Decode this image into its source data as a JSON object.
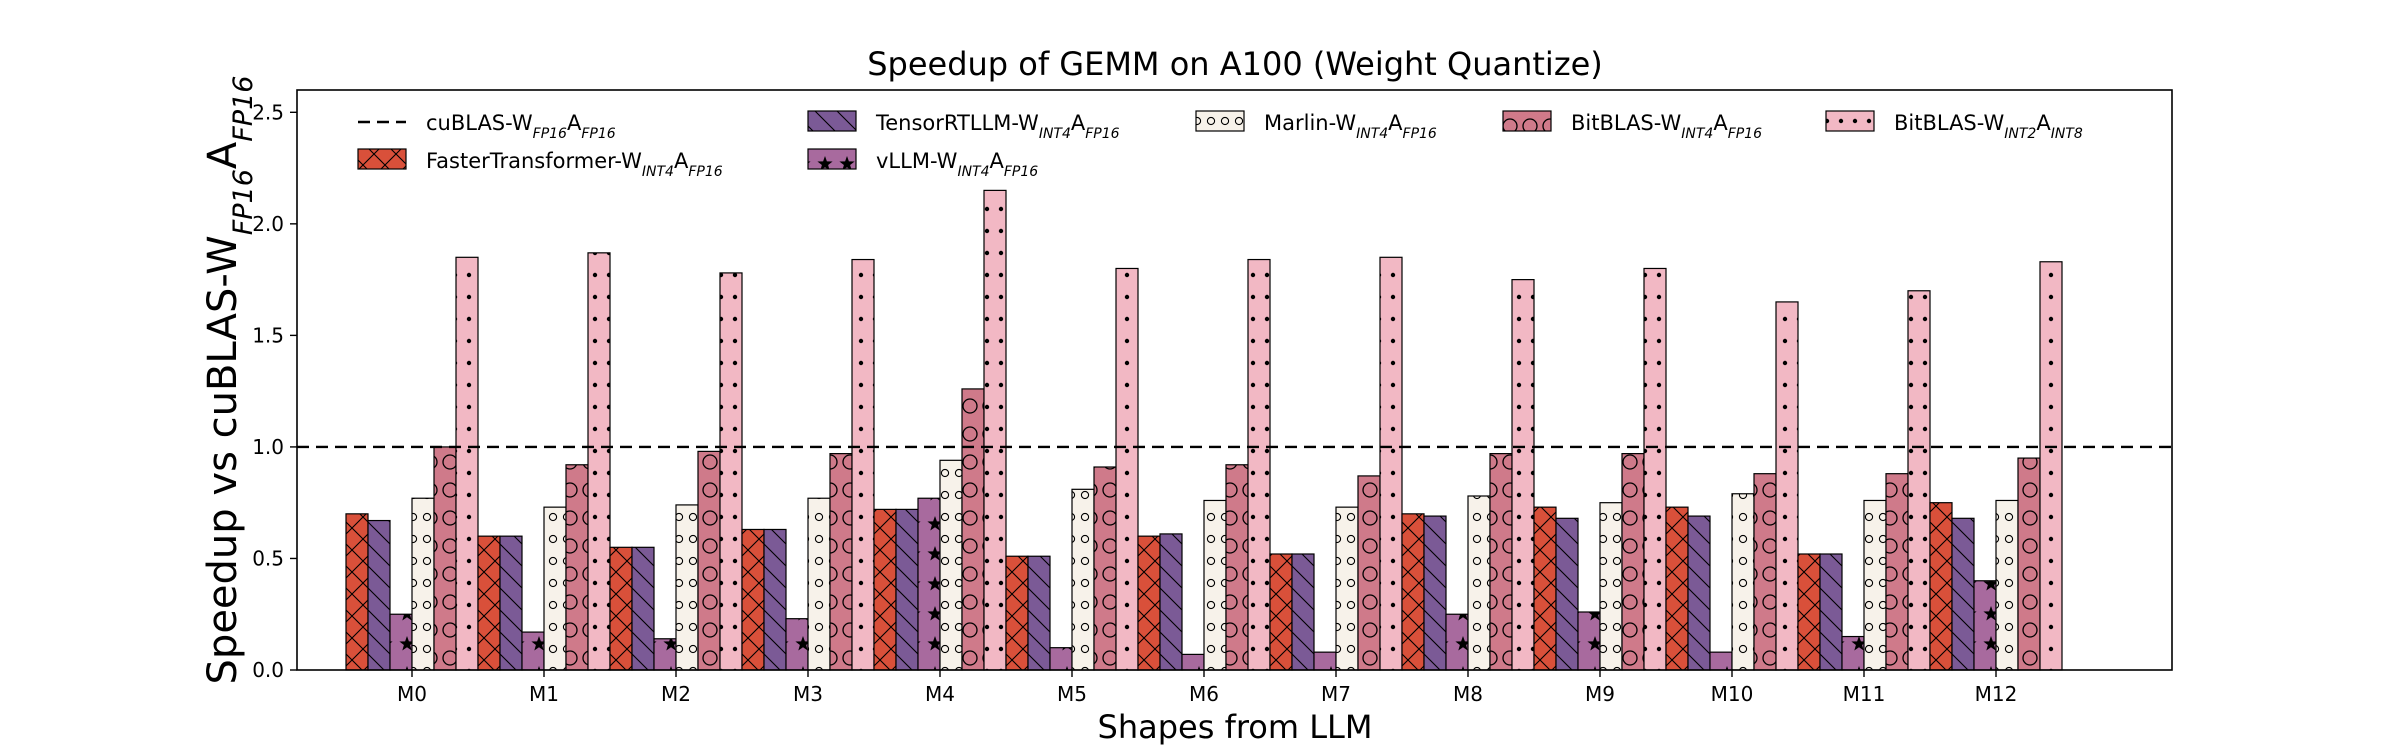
{
  "chart_data": {
    "type": "bar",
    "title": "Speedup of GEMM on A100 (Weight Quantize)",
    "xlabel": "Shapes from LLM",
    "ylabel": {
      "parts": [
        {
          "t": "Speedup vs cuBLAS-W",
          "sub": false
        },
        {
          "t": "FP16",
          "sub": true
        },
        {
          "t": "A",
          "sub": false
        },
        {
          "t": "FP16",
          "sub": true
        }
      ]
    },
    "ylim": [
      0,
      2.6
    ],
    "yticks": [
      "0.0",
      "0.5",
      "1.0",
      "1.5",
      "2.0",
      "2.5"
    ],
    "ytick_values": [
      0,
      0.5,
      1.0,
      1.5,
      2.0,
      2.5
    ],
    "grid": false,
    "legend_position": "top",
    "categories": [
      "M0",
      "M1",
      "M2",
      "M3",
      "M4",
      "M5",
      "M6",
      "M7",
      "M8",
      "M9",
      "M10",
      "M11",
      "M12"
    ],
    "reference_line": {
      "value": 1.0,
      "style": "dashed",
      "color": "#000000",
      "label": [
        {
          "t": "cuBLAS-W",
          "sub": false
        },
        {
          "t": "FP16",
          "sub": true
        },
        {
          "t": "A",
          "sub": false
        },
        {
          "t": "FP16",
          "sub": true
        }
      ]
    },
    "series": [
      {
        "name": "FasterTransformer-WINT4AFP16",
        "label": [
          {
            "t": "FasterTransformer-W",
            "sub": false
          },
          {
            "t": "INT4",
            "sub": true
          },
          {
            "t": "A",
            "sub": false
          },
          {
            "t": "FP16",
            "sub": true
          }
        ],
        "color": "#d9503a",
        "hatch": "cross",
        "values": [
          0.7,
          0.6,
          0.55,
          0.63,
          0.72,
          0.51,
          0.6,
          0.52,
          0.7,
          0.73,
          0.73,
          0.52,
          0.75
        ]
      },
      {
        "name": "TensorRTLLM-WINT4AFP16",
        "label": [
          {
            "t": "TensorRTLLM-W",
            "sub": false
          },
          {
            "t": "INT4",
            "sub": true
          },
          {
            "t": "A",
            "sub": false
          },
          {
            "t": "FP16",
            "sub": true
          }
        ],
        "color": "#7b5a96",
        "hatch": "backslash",
        "values": [
          0.67,
          0.6,
          0.55,
          0.63,
          0.72,
          0.51,
          0.61,
          0.52,
          0.69,
          0.68,
          0.69,
          0.52,
          0.68
        ]
      },
      {
        "name": "vLLM-WINT4AFP16",
        "label": [
          {
            "t": "vLLM-W",
            "sub": false
          },
          {
            "t": "INT4",
            "sub": true
          },
          {
            "t": "A",
            "sub": false
          },
          {
            "t": "FP16",
            "sub": true
          }
        ],
        "color": "#a86a9e",
        "hatch": "star",
        "values": [
          0.25,
          0.17,
          0.14,
          0.23,
          0.77,
          0.1,
          0.07,
          0.08,
          0.25,
          0.26,
          0.08,
          0.15,
          0.4
        ]
      },
      {
        "name": "Marlin-WINT4AFP16",
        "label": [
          {
            "t": "Marlin-W",
            "sub": false
          },
          {
            "t": "INT4",
            "sub": true
          },
          {
            "t": "A",
            "sub": false
          },
          {
            "t": "FP16",
            "sub": true
          }
        ],
        "color": "#f7f2ea",
        "hatch": "smallcircle",
        "values": [
          0.77,
          0.73,
          0.74,
          0.77,
          0.94,
          0.81,
          0.76,
          0.73,
          0.78,
          0.75,
          0.79,
          0.76,
          0.76
        ]
      },
      {
        "name": "BitBLAS-WINT4AFP16",
        "label": [
          {
            "t": "BitBLAS-W",
            "sub": false
          },
          {
            "t": "INT4",
            "sub": true
          },
          {
            "t": "A",
            "sub": false
          },
          {
            "t": "FP16",
            "sub": true
          }
        ],
        "color": "#cf7a8a",
        "hatch": "bigcircle",
        "values": [
          1.0,
          0.92,
          0.98,
          0.97,
          1.26,
          0.91,
          0.92,
          0.87,
          0.97,
          0.97,
          0.88,
          0.88,
          0.95
        ]
      },
      {
        "name": "BitBLAS-WINT2AINT8",
        "label": [
          {
            "t": "BitBLAS-W",
            "sub": false
          },
          {
            "t": "INT2",
            "sub": true
          },
          {
            "t": "A",
            "sub": false
          },
          {
            "t": "INT8",
            "sub": true
          }
        ],
        "color": "#f2b8c4",
        "hatch": "dot",
        "values": [
          1.85,
          1.87,
          1.78,
          1.84,
          2.15,
          1.8,
          1.84,
          1.85,
          1.75,
          1.8,
          1.65,
          1.7,
          1.83
        ]
      }
    ]
  }
}
